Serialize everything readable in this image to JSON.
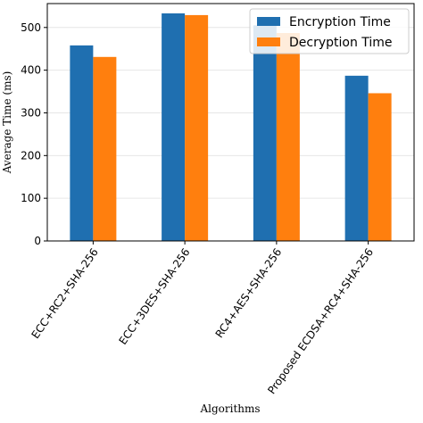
{
  "chart_data": {
    "type": "bar",
    "x_label": "Algorithms",
    "y_label": "Average Time (ms)",
    "categories": [
      "ECC+RC2+SHA-256",
      "ECC+3DES+SHA-256",
      "RC4+AES+SHA-256",
      "Proposed ECDSA+RC4+SHA-256"
    ],
    "series": [
      {
        "name": "Encryption Time",
        "color": "#1f6fb0",
        "values": [
          458,
          533,
          505,
          387
        ]
      },
      {
        "name": "Decryption Time",
        "color": "#ff7f0e",
        "values": [
          431,
          529,
          487,
          346
        ]
      }
    ],
    "ylim": [
      0,
      556
    ],
    "yticks": [
      0,
      100,
      200,
      300,
      400,
      500
    ],
    "grid": true,
    "legend": "upper right"
  }
}
